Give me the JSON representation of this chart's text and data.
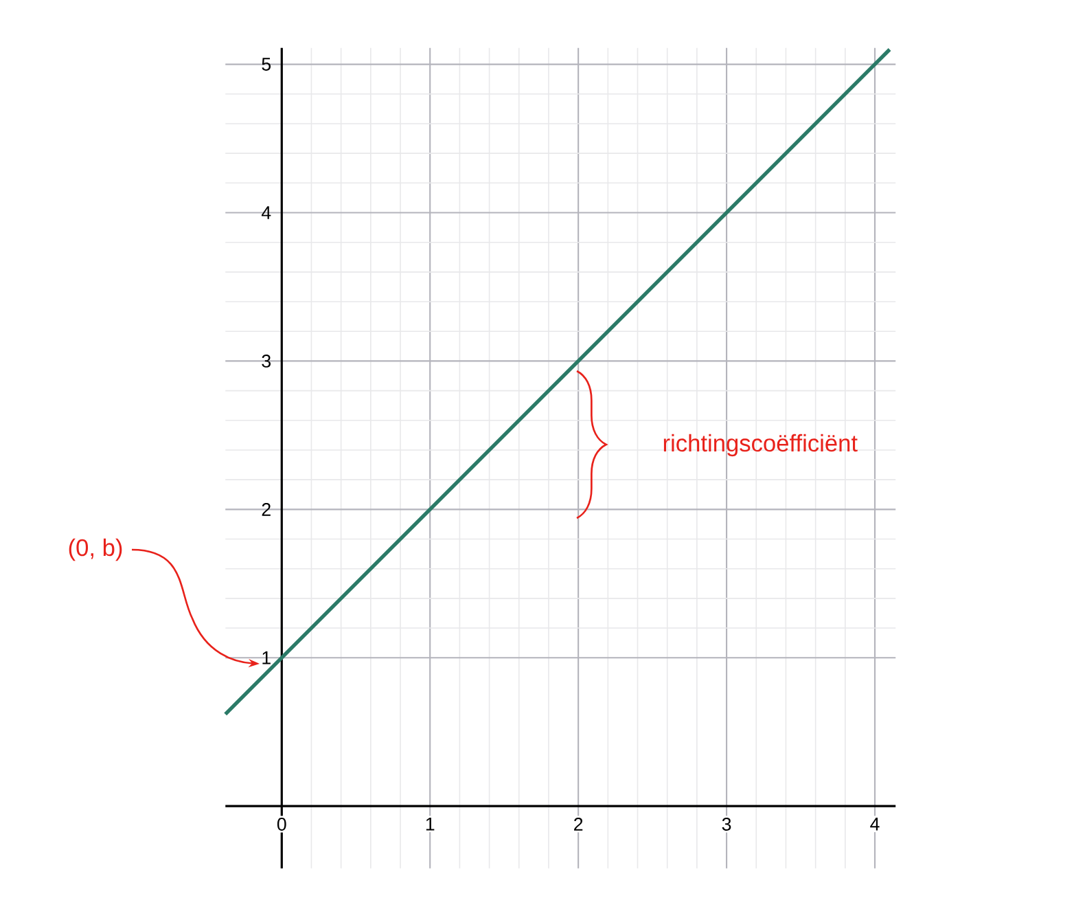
{
  "chart_data": {
    "type": "line",
    "x": [
      -0.38,
      4.1
    ],
    "series": [
      {
        "color": "#2b7a67",
        "values": [
          0.62,
          5.1
        ]
      }
    ],
    "xlim": [
      -0.38,
      4.14
    ],
    "ylim": [
      -0.42,
      5.11
    ],
    "xticks": [
      0,
      1,
      2,
      3,
      4
    ],
    "yticks": [
      1,
      2,
      3,
      4,
      5
    ],
    "grid": true,
    "marker": "none",
    "line_style": "solid",
    "annotations": [
      "(0, b)",
      "richtingscoëfficiënt"
    ]
  }
}
